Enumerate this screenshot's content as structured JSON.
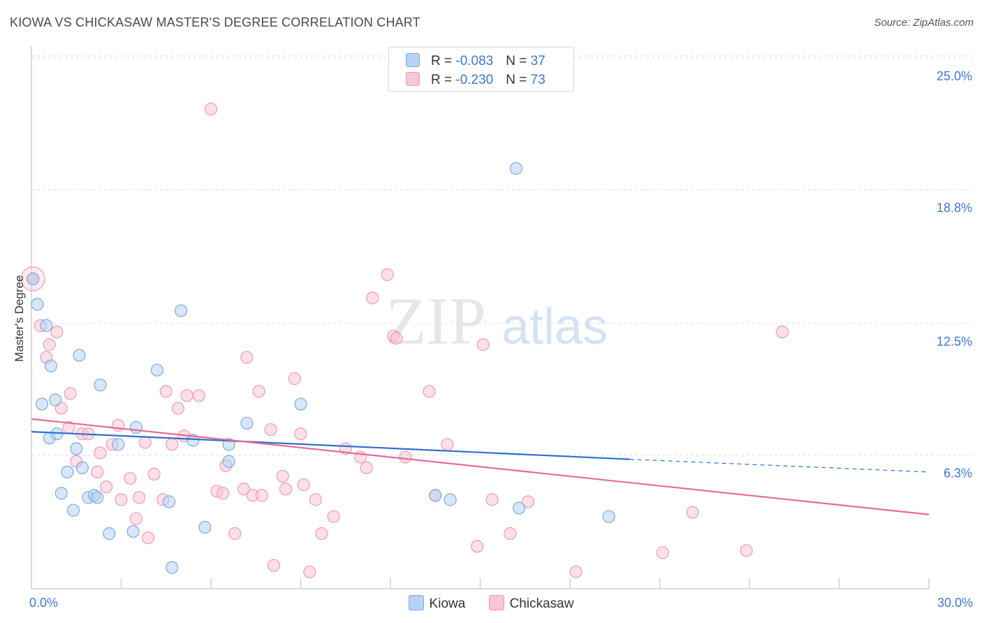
{
  "header": {
    "title": "KIOWA VS CHICKASAW MASTER'S DEGREE CORRELATION CHART",
    "source": "Source: ZipAtlas.com"
  },
  "watermark": {
    "zip": "ZIP",
    "atlas": "atlas"
  },
  "colors": {
    "kiowa_fill": "#b7d2f3",
    "kiowa_stroke": "#7eaae0",
    "kiowa_line": "#2f6fcc",
    "chickasaw_fill": "#f8c6d6",
    "chickasaw_stroke": "#ec9ab4",
    "chickasaw_line": "#e56b95",
    "tick_text": "#3f77c8",
    "grid": "#dddddd"
  },
  "legend": {
    "rows": [
      {
        "r_label": "R = ",
        "r_value": "-0.083",
        "n_label": "N = ",
        "n_value": "37"
      },
      {
        "r_label": "R = ",
        "r_value": "-0.230",
        "n_label": "N = ",
        "n_value": "73"
      }
    ]
  },
  "chart_data": {
    "type": "scatter",
    "title": "KIOWA VS CHICKASAW MASTER'S DEGREE CORRELATION CHART",
    "xlabel": "",
    "ylabel": "Master's Degree",
    "xlim": [
      0,
      30
    ],
    "ylim": [
      0,
      25.5
    ],
    "x_ticks": [
      0,
      3,
      6,
      9,
      12,
      15,
      18,
      21,
      24,
      27,
      30
    ],
    "x_tick_labels": [
      {
        "value": 0,
        "label": "0.0%"
      },
      {
        "value": 30,
        "label": "30.0%"
      }
    ],
    "y_ticks": [
      {
        "value": 6.3,
        "label": "6.3%"
      },
      {
        "value": 12.5,
        "label": "12.5%"
      },
      {
        "value": 18.8,
        "label": "18.8%"
      },
      {
        "value": 25.0,
        "label": "25.0%"
      }
    ],
    "grid": true,
    "series": [
      {
        "name": "Kiowa",
        "r": -0.083,
        "n": 37,
        "trend": {
          "x0": 0,
          "y0": 7.4,
          "x1": 20,
          "y1": 6.1,
          "dashed_to_x": 30,
          "dashed_to_y": 5.5
        },
        "points": [
          [
            0.05,
            14.6
          ],
          [
            0.2,
            13.4
          ],
          [
            0.5,
            12.4
          ],
          [
            0.35,
            8.7
          ],
          [
            0.6,
            7.1
          ],
          [
            0.65,
            10.5
          ],
          [
            0.8,
            8.9
          ],
          [
            0.85,
            7.3
          ],
          [
            1.0,
            4.5
          ],
          [
            1.2,
            5.5
          ],
          [
            1.4,
            3.7
          ],
          [
            1.5,
            6.6
          ],
          [
            1.6,
            11.0
          ],
          [
            1.7,
            5.7
          ],
          [
            1.9,
            4.3
          ],
          [
            2.1,
            4.4
          ],
          [
            2.2,
            4.3
          ],
          [
            2.3,
            9.6
          ],
          [
            2.6,
            2.6
          ],
          [
            2.9,
            6.8
          ],
          [
            3.4,
            2.7
          ],
          [
            3.5,
            7.6
          ],
          [
            4.2,
            10.3
          ],
          [
            4.6,
            4.1
          ],
          [
            4.7,
            1.0
          ],
          [
            5.0,
            13.1
          ],
          [
            5.4,
            7.0
          ],
          [
            5.8,
            2.9
          ],
          [
            6.6,
            6.8
          ],
          [
            6.6,
            6.0
          ],
          [
            7.2,
            7.8
          ],
          [
            9.0,
            8.7
          ],
          [
            13.5,
            4.4
          ],
          [
            14.0,
            4.2
          ],
          [
            16.2,
            19.8
          ],
          [
            16.3,
            3.8
          ],
          [
            19.3,
            3.4
          ]
        ]
      },
      {
        "name": "Chickasaw",
        "r": -0.23,
        "n": 73,
        "trend": {
          "x0": 0,
          "y0": 8.0,
          "x1": 30,
          "y1": 3.5
        },
        "points": [
          [
            0.05,
            14.6
          ],
          [
            0.3,
            12.4
          ],
          [
            0.5,
            10.9
          ],
          [
            0.6,
            11.5
          ],
          [
            0.85,
            12.1
          ],
          [
            1.0,
            8.5
          ],
          [
            1.25,
            7.6
          ],
          [
            1.3,
            9.2
          ],
          [
            1.5,
            6.0
          ],
          [
            1.7,
            7.3
          ],
          [
            1.9,
            7.3
          ],
          [
            2.2,
            5.5
          ],
          [
            2.3,
            6.4
          ],
          [
            2.5,
            4.8
          ],
          [
            2.7,
            6.8
          ],
          [
            2.9,
            7.7
          ],
          [
            3.0,
            4.2
          ],
          [
            3.3,
            5.2
          ],
          [
            3.5,
            3.3
          ],
          [
            3.6,
            4.3
          ],
          [
            3.8,
            6.9
          ],
          [
            3.9,
            2.4
          ],
          [
            4.1,
            5.4
          ],
          [
            4.4,
            4.2
          ],
          [
            4.5,
            9.3
          ],
          [
            4.7,
            6.8
          ],
          [
            4.9,
            8.5
          ],
          [
            5.1,
            7.2
          ],
          [
            5.2,
            9.1
          ],
          [
            5.6,
            9.1
          ],
          [
            6.0,
            22.6
          ],
          [
            6.2,
            4.6
          ],
          [
            6.4,
            4.5
          ],
          [
            6.5,
            5.8
          ],
          [
            6.8,
            2.6
          ],
          [
            7.1,
            4.7
          ],
          [
            7.2,
            10.9
          ],
          [
            7.4,
            4.4
          ],
          [
            7.6,
            9.3
          ],
          [
            7.7,
            4.4
          ],
          [
            8.0,
            7.5
          ],
          [
            8.1,
            1.1
          ],
          [
            8.4,
            5.3
          ],
          [
            8.5,
            4.7
          ],
          [
            8.8,
            9.9
          ],
          [
            9.0,
            7.3
          ],
          [
            9.1,
            4.9
          ],
          [
            9.3,
            0.8
          ],
          [
            9.5,
            4.2
          ],
          [
            9.7,
            2.6
          ],
          [
            10.1,
            3.4
          ],
          [
            10.5,
            6.6
          ],
          [
            11.0,
            6.2
          ],
          [
            11.2,
            5.7
          ],
          [
            11.4,
            13.7
          ],
          [
            11.9,
            14.8
          ],
          [
            12.1,
            11.9
          ],
          [
            12.2,
            11.8
          ],
          [
            12.5,
            6.2
          ],
          [
            13.3,
            9.3
          ],
          [
            13.5,
            4.4
          ],
          [
            13.9,
            6.8
          ],
          [
            14.9,
            2.0
          ],
          [
            15.1,
            11.5
          ],
          [
            15.4,
            4.2
          ],
          [
            16.0,
            2.6
          ],
          [
            16.6,
            4.1
          ],
          [
            18.2,
            0.8
          ],
          [
            21.1,
            1.7
          ],
          [
            22.1,
            3.6
          ],
          [
            23.9,
            1.8
          ],
          [
            25.1,
            12.1
          ],
          [
            0.05,
            14.6
          ]
        ]
      }
    ]
  },
  "bottom_legend": {
    "items": [
      {
        "label": "Kiowa"
      },
      {
        "label": "Chickasaw"
      }
    ]
  }
}
